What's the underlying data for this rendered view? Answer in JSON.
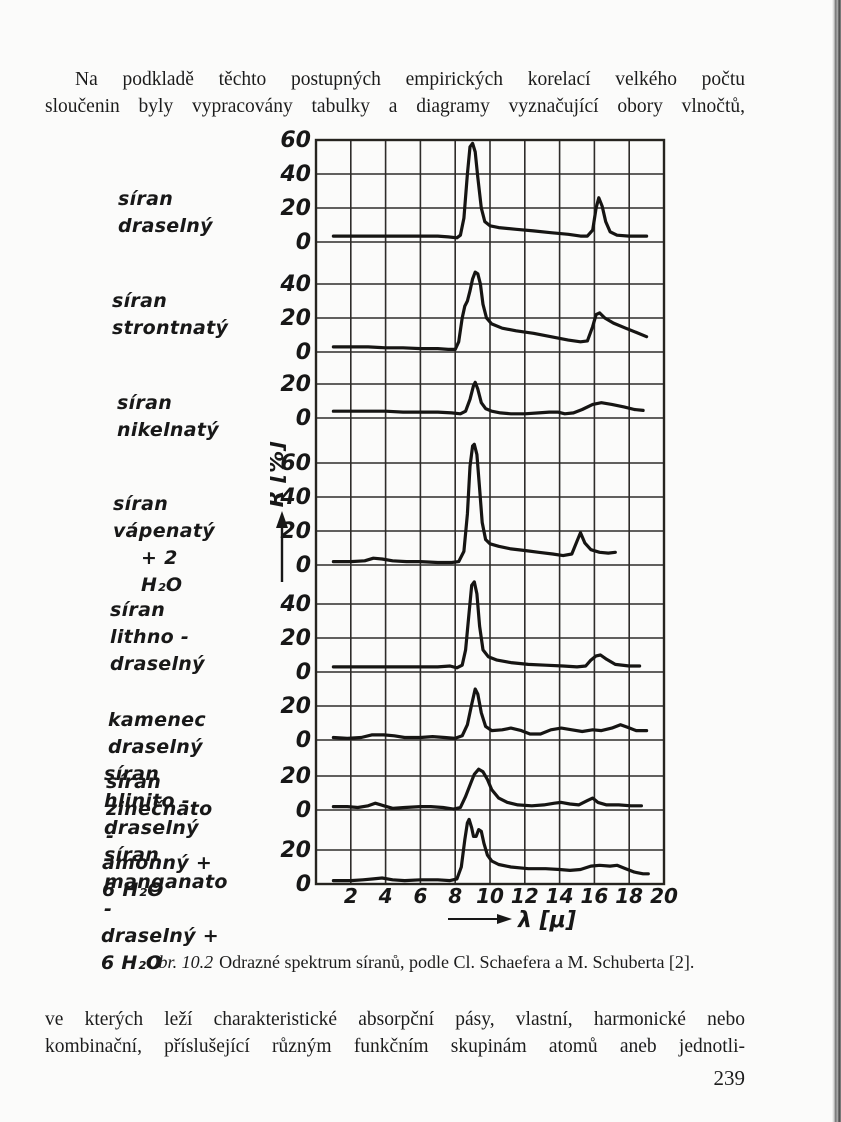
{
  "page": {
    "background": "#fbfbfa",
    "ink": "#1c1c1c",
    "page_number": "239",
    "paragraph_top": {
      "line1": "Na podkladě těchto postupných empirických korelací velkého počtu",
      "line2": "sloučenin byly vypracovány tabulky a diagramy vyznačující obory vlnočtů,"
    },
    "paragraph_bottom": {
      "line1": "ve kterých leží charakteristické absorpční pásy, vlastní, harmonické nebo",
      "line2": "kombinační, příslušející různým funkčním skupinám atomů aneb jednotli-"
    },
    "caption": {
      "label": "Obr. 10.2",
      "text": "Odrazné spektrum síranů, podle Cl. Schaefera a M. Schuberta [2]."
    }
  },
  "chart_data": {
    "type": "line",
    "title": "Odrazné spektrum síranů",
    "xlabel": "λ [μ]",
    "ylabel": "R [%]",
    "x_range": [
      0,
      20
    ],
    "x_ticks": [
      2,
      4,
      6,
      8,
      10,
      12,
      14,
      16,
      18,
      20
    ],
    "grid": true,
    "legend_position": "left-margin-labels",
    "panels": [
      {
        "label_lines": [
          "síran draselný"
        ],
        "y_ticks": [
          0,
          20,
          40,
          60
        ],
        "points": [
          [
            1,
            3.5
          ],
          [
            2,
            3.5
          ],
          [
            3,
            3.5
          ],
          [
            4,
            3.5
          ],
          [
            5,
            3.5
          ],
          [
            6,
            3.5
          ],
          [
            7,
            3.5
          ],
          [
            7.6,
            3
          ],
          [
            8.1,
            2.5
          ],
          [
            8.3,
            4
          ],
          [
            8.5,
            14
          ],
          [
            8.7,
            40
          ],
          [
            8.85,
            56
          ],
          [
            9,
            58
          ],
          [
            9.15,
            53
          ],
          [
            9.3,
            38
          ],
          [
            9.5,
            20
          ],
          [
            9.7,
            12
          ],
          [
            10,
            9.5
          ],
          [
            10.5,
            8.5
          ],
          [
            11.5,
            7.5
          ],
          [
            12.5,
            6.5
          ],
          [
            13.5,
            5.5
          ],
          [
            14.5,
            4.5
          ],
          [
            15.2,
            3.5
          ],
          [
            15.6,
            3.5
          ],
          [
            15.9,
            7
          ],
          [
            16.1,
            20
          ],
          [
            16.25,
            26
          ],
          [
            16.45,
            21
          ],
          [
            16.65,
            12
          ],
          [
            16.9,
            6
          ],
          [
            17.3,
            4
          ],
          [
            18,
            3.5
          ],
          [
            18.6,
            3.5
          ],
          [
            19,
            3.5
          ]
        ]
      },
      {
        "label_lines": [
          "síran strontnatý"
        ],
        "y_ticks": [
          0,
          20,
          40
        ],
        "points": [
          [
            1,
            3
          ],
          [
            2,
            3
          ],
          [
            3,
            3
          ],
          [
            4,
            2.5
          ],
          [
            5,
            2.5
          ],
          [
            6,
            2
          ],
          [
            7,
            2
          ],
          [
            7.6,
            1.5
          ],
          [
            8,
            1.5
          ],
          [
            8.2,
            6
          ],
          [
            8.4,
            20
          ],
          [
            8.55,
            27
          ],
          [
            8.7,
            30
          ],
          [
            8.85,
            36
          ],
          [
            9,
            43
          ],
          [
            9.15,
            47
          ],
          [
            9.3,
            46
          ],
          [
            9.45,
            40
          ],
          [
            9.6,
            28
          ],
          [
            9.8,
            20
          ],
          [
            10.1,
            16.5
          ],
          [
            10.7,
            14
          ],
          [
            11.5,
            12.5
          ],
          [
            12.5,
            11
          ],
          [
            13.5,
            9
          ],
          [
            14.5,
            7
          ],
          [
            15.2,
            6
          ],
          [
            15.6,
            6.5
          ],
          [
            15.9,
            15
          ],
          [
            16.1,
            22
          ],
          [
            16.3,
            23
          ],
          [
            16.6,
            20
          ],
          [
            17.1,
            17
          ],
          [
            17.8,
            14
          ],
          [
            18.4,
            11.5
          ],
          [
            19,
            9
          ]
        ]
      },
      {
        "label_lines": [
          "síran nikelnatý"
        ],
        "y_ticks": [
          0,
          20
        ],
        "points": [
          [
            1,
            4
          ],
          [
            2,
            4
          ],
          [
            3,
            4
          ],
          [
            4,
            4
          ],
          [
            5,
            3.5
          ],
          [
            6,
            3.5
          ],
          [
            7,
            3.5
          ],
          [
            7.8,
            3
          ],
          [
            8.3,
            2.5
          ],
          [
            8.6,
            4
          ],
          [
            8.85,
            11
          ],
          [
            9.05,
            19
          ],
          [
            9.15,
            21
          ],
          [
            9.3,
            17
          ],
          [
            9.5,
            9
          ],
          [
            9.75,
            5.5
          ],
          [
            10.1,
            4
          ],
          [
            10.6,
            3
          ],
          [
            11.2,
            2.5
          ],
          [
            12,
            2.5
          ],
          [
            12.8,
            3
          ],
          [
            13.4,
            3.5
          ],
          [
            13.9,
            3.5
          ],
          [
            14.3,
            2.5
          ],
          [
            14.8,
            3
          ],
          [
            15.3,
            5
          ],
          [
            15.9,
            8
          ],
          [
            16.4,
            9
          ],
          [
            17,
            8
          ],
          [
            17.7,
            6.5
          ],
          [
            18.3,
            5
          ],
          [
            18.8,
            4.5
          ]
        ]
      },
      {
        "label_lines": [
          "síran vápenatý",
          "+ 2 H₂O"
        ],
        "y_ticks": [
          0,
          20,
          40,
          60
        ],
        "points": [
          [
            1,
            2
          ],
          [
            2,
            2
          ],
          [
            2.8,
            2.5
          ],
          [
            3.3,
            4
          ],
          [
            3.8,
            3.5
          ],
          [
            4.4,
            2.5
          ],
          [
            5.2,
            2
          ],
          [
            6,
            2
          ],
          [
            7,
            1.5
          ],
          [
            7.8,
            1.5
          ],
          [
            8.2,
            2
          ],
          [
            8.5,
            8
          ],
          [
            8.7,
            30
          ],
          [
            8.85,
            58
          ],
          [
            9,
            70
          ],
          [
            9.1,
            71
          ],
          [
            9.25,
            65
          ],
          [
            9.4,
            45
          ],
          [
            9.55,
            25
          ],
          [
            9.75,
            15
          ],
          [
            10,
            12.5
          ],
          [
            10.5,
            11
          ],
          [
            11.2,
            9.5
          ],
          [
            12,
            8.5
          ],
          [
            12.8,
            7.5
          ],
          [
            13.6,
            6.5
          ],
          [
            14.2,
            5.5
          ],
          [
            14.7,
            6.5
          ],
          [
            15,
            14
          ],
          [
            15.2,
            19
          ],
          [
            15.45,
            13
          ],
          [
            15.8,
            9
          ],
          [
            16.3,
            7.5
          ],
          [
            16.8,
            7
          ],
          [
            17.2,
            7.5
          ]
        ]
      },
      {
        "label_lines": [
          "síran lithno -",
          "draselný"
        ],
        "y_ticks": [
          0,
          20,
          40
        ],
        "points": [
          [
            1,
            3
          ],
          [
            2,
            3
          ],
          [
            3,
            3
          ],
          [
            4,
            3
          ],
          [
            5,
            3
          ],
          [
            6,
            3
          ],
          [
            7,
            3
          ],
          [
            7.7,
            3.5
          ],
          [
            8.1,
            2.5
          ],
          [
            8.4,
            4
          ],
          [
            8.6,
            13
          ],
          [
            8.8,
            35
          ],
          [
            8.95,
            51
          ],
          [
            9.1,
            53
          ],
          [
            9.25,
            46
          ],
          [
            9.4,
            27
          ],
          [
            9.6,
            13
          ],
          [
            9.9,
            9
          ],
          [
            10.4,
            7
          ],
          [
            11.2,
            5.5
          ],
          [
            12.2,
            4.5
          ],
          [
            13.2,
            4
          ],
          [
            14.2,
            3.5
          ],
          [
            15,
            3
          ],
          [
            15.5,
            3.5
          ],
          [
            15.8,
            7
          ],
          [
            16.1,
            9.5
          ],
          [
            16.35,
            10
          ],
          [
            16.7,
            7.5
          ],
          [
            17.2,
            4.5
          ],
          [
            18,
            3.5
          ],
          [
            18.6,
            3.5
          ]
        ]
      },
      {
        "label_lines": [
          "kamenec draselný",
          "síran hlinito -draselný"
        ],
        "y_ticks": [
          0,
          20
        ],
        "points": [
          [
            1,
            1.5
          ],
          [
            1.8,
            1
          ],
          [
            2.6,
            1.5
          ],
          [
            3.2,
            3
          ],
          [
            3.9,
            3
          ],
          [
            4.5,
            2.5
          ],
          [
            5.1,
            1.5
          ],
          [
            6,
            1.5
          ],
          [
            6.7,
            2
          ],
          [
            7.4,
            1.5
          ],
          [
            8,
            1
          ],
          [
            8.4,
            2.5
          ],
          [
            8.7,
            9
          ],
          [
            8.95,
            21
          ],
          [
            9.15,
            30
          ],
          [
            9.3,
            27
          ],
          [
            9.5,
            16
          ],
          [
            9.75,
            8
          ],
          [
            10.1,
            5.5
          ],
          [
            10.7,
            6
          ],
          [
            11.2,
            7
          ],
          [
            11.8,
            5.5
          ],
          [
            12.3,
            3.5
          ],
          [
            12.9,
            3.5
          ],
          [
            13.5,
            6
          ],
          [
            14.1,
            7
          ],
          [
            14.7,
            6
          ],
          [
            15.3,
            5
          ],
          [
            15.9,
            6
          ],
          [
            16.4,
            5.5
          ],
          [
            17,
            7
          ],
          [
            17.5,
            9
          ],
          [
            17.9,
            7.5
          ],
          [
            18.4,
            5.5
          ],
          [
            19,
            5.5
          ]
        ]
      },
      {
        "label_lines": [
          "síran zinečnato -",
          "amonný  + 6 H₂O"
        ],
        "y_ticks": [
          0,
          20
        ],
        "points": [
          [
            1,
            2
          ],
          [
            1.8,
            2
          ],
          [
            2.4,
            1.5
          ],
          [
            3,
            2.5
          ],
          [
            3.4,
            4
          ],
          [
            3.9,
            2.5
          ],
          [
            4.4,
            1
          ],
          [
            5.1,
            1.5
          ],
          [
            6,
            2
          ],
          [
            6.6,
            2
          ],
          [
            7.3,
            1.5
          ],
          [
            7.9,
            0.5
          ],
          [
            8.3,
            1.5
          ],
          [
            8.6,
            8
          ],
          [
            8.9,
            16
          ],
          [
            9.1,
            21
          ],
          [
            9.35,
            24
          ],
          [
            9.6,
            22.5
          ],
          [
            9.85,
            18
          ],
          [
            10.1,
            12
          ],
          [
            10.5,
            7
          ],
          [
            11,
            4.5
          ],
          [
            11.6,
            3
          ],
          [
            12.4,
            2.5
          ],
          [
            13.1,
            3
          ],
          [
            13.7,
            4
          ],
          [
            14.1,
            4.5
          ],
          [
            14.6,
            3.5
          ],
          [
            15.1,
            3
          ],
          [
            15.6,
            5.5
          ],
          [
            15.9,
            7
          ],
          [
            16.2,
            4.5
          ],
          [
            16.7,
            3
          ],
          [
            17.4,
            3
          ],
          [
            18.1,
            2.5
          ],
          [
            18.7,
            2.5
          ]
        ]
      },
      {
        "label_lines": [
          "síran manganato -",
          "draselný  + 6 H₂O"
        ],
        "y_ticks": [
          0,
          20
        ],
        "points": [
          [
            1,
            2
          ],
          [
            2,
            2
          ],
          [
            2.7,
            2.5
          ],
          [
            3.3,
            3
          ],
          [
            3.8,
            3.5
          ],
          [
            4.4,
            2.5
          ],
          [
            5.1,
            2
          ],
          [
            6,
            2.5
          ],
          [
            7,
            2.5
          ],
          [
            7.7,
            2
          ],
          [
            8.1,
            3
          ],
          [
            8.35,
            10
          ],
          [
            8.55,
            26
          ],
          [
            8.7,
            36
          ],
          [
            8.8,
            38
          ],
          [
            8.95,
            33
          ],
          [
            9.05,
            28
          ],
          [
            9.2,
            28
          ],
          [
            9.35,
            32
          ],
          [
            9.5,
            31
          ],
          [
            9.65,
            24
          ],
          [
            9.85,
            17
          ],
          [
            10.1,
            13.5
          ],
          [
            10.5,
            11.5
          ],
          [
            11.2,
            10
          ],
          [
            12.2,
            9
          ],
          [
            13.2,
            9
          ],
          [
            14,
            8.5
          ],
          [
            14.6,
            8
          ],
          [
            15.2,
            8.5
          ],
          [
            15.8,
            10.5
          ],
          [
            16.3,
            11
          ],
          [
            16.9,
            10.5
          ],
          [
            17.3,
            11
          ],
          [
            17.8,
            9
          ],
          [
            18.3,
            7
          ],
          [
            18.8,
            6
          ],
          [
            19.1,
            6
          ]
        ]
      }
    ]
  }
}
